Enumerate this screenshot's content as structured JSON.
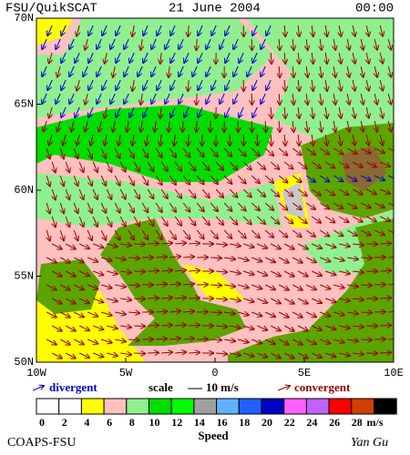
{
  "header": {
    "source": "FSU/QuikSCAT",
    "date": "21 June 2004",
    "time": "00:00"
  },
  "lat_labels": [
    "70N",
    "65N",
    "60N",
    "55N",
    "50N"
  ],
  "lon_labels": [
    "10W",
    "5W",
    "0",
    "5E",
    "10E"
  ],
  "legend": {
    "divergent": "divergent",
    "scale": "scale",
    "scale_value": "10 m/s",
    "convergent": "convergent"
  },
  "colorbar": {
    "labels": [
      "0",
      "2",
      "4",
      "6",
      "8",
      "10",
      "12",
      "14",
      "16",
      "18",
      "20",
      "22",
      "24",
      "26",
      "28"
    ],
    "unit": "m/s",
    "title": "Speed"
  },
  "footer": {
    "left": "COAPS-FSU",
    "right": "Yan Gu"
  }
}
